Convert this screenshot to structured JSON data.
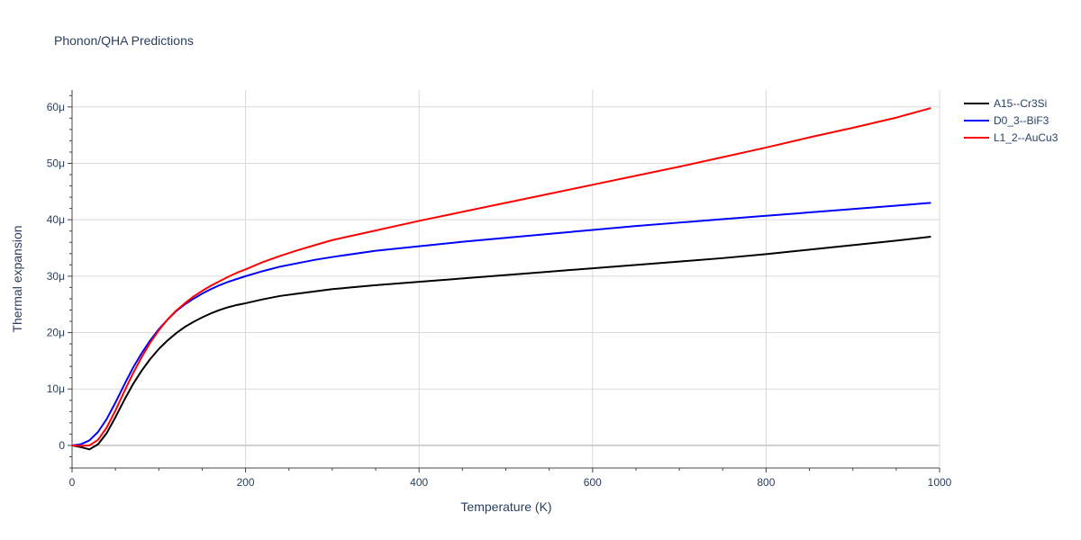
{
  "chart_data": {
    "type": "line",
    "title": "Phonon/QHA Predictions",
    "xlabel": "Temperature (K)",
    "ylabel": "Thermal expansion",
    "xlim": [
      0,
      1000
    ],
    "ylim": [
      -4,
      63
    ],
    "grid": true,
    "legend_position": "top-right",
    "x_ticks": [
      0,
      200,
      400,
      600,
      800,
      1000
    ],
    "x_tick_labels": [
      "0",
      "200",
      "400",
      "600",
      "800",
      "1000"
    ],
    "y_ticks": [
      0,
      10,
      20,
      30,
      40,
      50,
      60
    ],
    "y_tick_labels": [
      "0",
      "10μ",
      "20μ",
      "30μ",
      "40μ",
      "50μ",
      "60μ"
    ],
    "y_unit_note": "values in units of 1e-6 (μ)",
    "series": [
      {
        "name": "A15--Cr3Si",
        "color": "#000000",
        "x": [
          0,
          10,
          20,
          30,
          40,
          50,
          60,
          70,
          80,
          90,
          100,
          110,
          120,
          130,
          140,
          150,
          160,
          170,
          180,
          190,
          200,
          220,
          240,
          260,
          280,
          300,
          350,
          400,
          450,
          500,
          550,
          600,
          650,
          700,
          750,
          800,
          850,
          900,
          950,
          990
        ],
        "y": [
          0,
          -0.3,
          -0.7,
          0.2,
          2.2,
          5.0,
          8.0,
          10.8,
          13.2,
          15.3,
          17.1,
          18.6,
          19.9,
          21.0,
          21.9,
          22.7,
          23.4,
          24.0,
          24.5,
          24.9,
          25.2,
          25.9,
          26.5,
          26.9,
          27.3,
          27.7,
          28.4,
          29.0,
          29.6,
          30.2,
          30.8,
          31.4,
          32.0,
          32.6,
          33.2,
          33.9,
          34.7,
          35.5,
          36.3,
          37.0
        ]
      },
      {
        "name": "D0_3--BiF3",
        "color": "#0000ff",
        "x": [
          0,
          10,
          20,
          30,
          40,
          50,
          60,
          70,
          80,
          90,
          100,
          110,
          120,
          130,
          140,
          150,
          160,
          170,
          180,
          190,
          200,
          220,
          240,
          260,
          280,
          300,
          350,
          400,
          450,
          500,
          550,
          600,
          650,
          700,
          750,
          800,
          850,
          900,
          950,
          990
        ],
        "y": [
          0,
          0.2,
          0.9,
          2.4,
          4.7,
          7.6,
          10.7,
          13.7,
          16.3,
          18.6,
          20.6,
          22.3,
          23.8,
          25.0,
          26.0,
          26.9,
          27.7,
          28.4,
          29.0,
          29.5,
          30.0,
          30.9,
          31.7,
          32.3,
          32.9,
          33.4,
          34.5,
          35.3,
          36.1,
          36.8,
          37.5,
          38.2,
          38.9,
          39.5,
          40.1,
          40.7,
          41.3,
          41.9,
          42.5,
          43.0
        ]
      },
      {
        "name": "L1_2--AuCu3",
        "color": "#ff0000",
        "x": [
          0,
          10,
          20,
          30,
          40,
          50,
          60,
          70,
          80,
          90,
          100,
          110,
          120,
          130,
          140,
          150,
          160,
          170,
          180,
          190,
          200,
          220,
          240,
          260,
          280,
          300,
          350,
          400,
          450,
          500,
          550,
          600,
          650,
          700,
          750,
          800,
          850,
          900,
          950,
          990
        ],
        "y": [
          0,
          -0.1,
          0.0,
          1.0,
          3.2,
          6.2,
          9.5,
          12.7,
          15.6,
          18.2,
          20.4,
          22.3,
          23.9,
          25.2,
          26.4,
          27.4,
          28.3,
          29.1,
          29.9,
          30.6,
          31.2,
          32.5,
          33.6,
          34.6,
          35.5,
          36.4,
          38.1,
          39.8,
          41.4,
          43.0,
          44.6,
          46.2,
          47.8,
          49.4,
          51.1,
          52.8,
          54.6,
          56.3,
          58.1,
          59.8
        ]
      }
    ]
  }
}
